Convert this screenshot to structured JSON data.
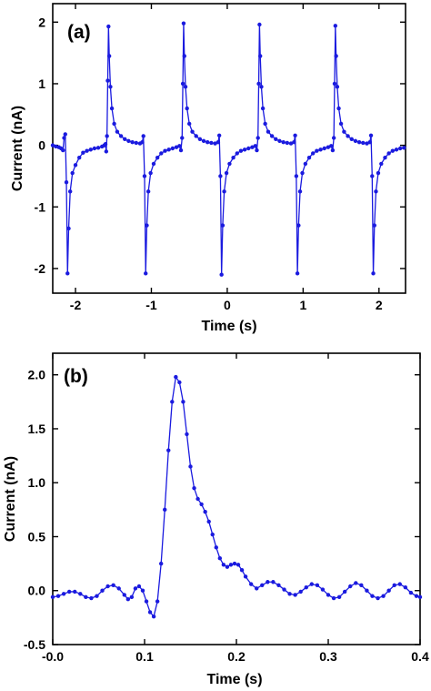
{
  "colors": {
    "series": "#1a1adf",
    "axis": "#000000"
  },
  "chart_data": [
    {
      "type": "line",
      "panel_label": "(a)",
      "xlabel": "Time (s)",
      "ylabel": "Current (nA)",
      "xlim": [
        -2.3,
        2.35
      ],
      "ylim": [
        -2.4,
        2.3
      ],
      "xticks": [
        -2,
        -1,
        0,
        1,
        2
      ],
      "xtick_labels": [
        "-2",
        "-1",
        "0",
        "1",
        "2"
      ],
      "yticks": [
        -2,
        -1,
        0,
        1,
        2
      ],
      "ytick_labels": [
        "-2",
        "-1",
        "0",
        "1",
        "2"
      ],
      "grid": false,
      "series": [
        {
          "markers": true,
          "points": [
            [
              -2.3,
              0.0
            ],
            [
              -2.26,
              -0.02
            ],
            [
              -2.22,
              -0.03
            ],
            [
              -2.19,
              -0.05
            ],
            [
              -2.165,
              -0.08
            ],
            [
              -2.15,
              0.12
            ],
            [
              -2.135,
              0.18
            ],
            [
              -2.12,
              -0.6
            ],
            [
              -2.105,
              -2.08
            ],
            [
              -2.09,
              -1.35
            ],
            [
              -2.07,
              -0.75
            ],
            [
              -2.04,
              -0.45
            ],
            [
              -2.0,
              -0.32
            ],
            [
              -1.95,
              -0.2
            ],
            [
              -1.9,
              -0.12
            ],
            [
              -1.85,
              -0.09
            ],
            [
              -1.8,
              -0.07
            ],
            [
              -1.75,
              -0.05
            ],
            [
              -1.7,
              -0.04
            ],
            [
              -1.65,
              -0.02
            ],
            [
              -1.62,
              0.0
            ],
            [
              -1.605,
              0.02
            ],
            [
              -1.595,
              -0.1
            ],
            [
              -1.585,
              0.15
            ],
            [
              -1.575,
              1.05
            ],
            [
              -1.565,
              1.93
            ],
            [
              -1.555,
              1.45
            ],
            [
              -1.54,
              0.95
            ],
            [
              -1.52,
              0.6
            ],
            [
              -1.49,
              0.35
            ],
            [
              -1.45,
              0.22
            ],
            [
              -1.4,
              0.15
            ],
            [
              -1.35,
              0.1
            ],
            [
              -1.3,
              0.07
            ],
            [
              -1.25,
              0.05
            ],
            [
              -1.2,
              0.04
            ],
            [
              -1.15,
              0.03
            ],
            [
              -1.12,
              0.05
            ],
            [
              -1.105,
              0.15
            ],
            [
              -1.09,
              -0.5
            ],
            [
              -1.075,
              -2.08
            ],
            [
              -1.06,
              -1.3
            ],
            [
              -1.04,
              -0.75
            ],
            [
              -1.01,
              -0.45
            ],
            [
              -0.97,
              -0.3
            ],
            [
              -0.92,
              -0.2
            ],
            [
              -0.87,
              -0.13
            ],
            [
              -0.82,
              -0.09
            ],
            [
              -0.77,
              -0.07
            ],
            [
              -0.72,
              -0.05
            ],
            [
              -0.67,
              -0.03
            ],
            [
              -0.63,
              -0.01
            ],
            [
              -0.61,
              -0.08
            ],
            [
              -0.595,
              0.12
            ],
            [
              -0.585,
              1.0
            ],
            [
              -0.575,
              1.98
            ],
            [
              -0.565,
              1.45
            ],
            [
              -0.55,
              0.95
            ],
            [
              -0.53,
              0.6
            ],
            [
              -0.5,
              0.35
            ],
            [
              -0.46,
              0.22
            ],
            [
              -0.41,
              0.15
            ],
            [
              -0.36,
              0.1
            ],
            [
              -0.31,
              0.07
            ],
            [
              -0.26,
              0.05
            ],
            [
              -0.21,
              0.04
            ],
            [
              -0.16,
              0.03
            ],
            [
              -0.12,
              0.05
            ],
            [
              -0.105,
              0.16
            ],
            [
              -0.09,
              -0.5
            ],
            [
              -0.075,
              -2.1
            ],
            [
              -0.06,
              -1.3
            ],
            [
              -0.04,
              -0.75
            ],
            [
              -0.01,
              -0.45
            ],
            [
              0.03,
              -0.3
            ],
            [
              0.08,
              -0.2
            ],
            [
              0.13,
              -0.13
            ],
            [
              0.18,
              -0.09
            ],
            [
              0.23,
              -0.07
            ],
            [
              0.28,
              -0.05
            ],
            [
              0.33,
              -0.03
            ],
            [
              0.37,
              -0.01
            ],
            [
              0.39,
              -0.08
            ],
            [
              0.405,
              0.12
            ],
            [
              0.415,
              1.0
            ],
            [
              0.425,
              1.96
            ],
            [
              0.435,
              1.45
            ],
            [
              0.45,
              0.95
            ],
            [
              0.47,
              0.6
            ],
            [
              0.5,
              0.35
            ],
            [
              0.54,
              0.22
            ],
            [
              0.59,
              0.15
            ],
            [
              0.64,
              0.1
            ],
            [
              0.69,
              0.07
            ],
            [
              0.74,
              0.05
            ],
            [
              0.79,
              0.04
            ],
            [
              0.84,
              0.03
            ],
            [
              0.88,
              0.05
            ],
            [
              0.895,
              0.16
            ],
            [
              0.91,
              -0.5
            ],
            [
              0.925,
              -2.08
            ],
            [
              0.94,
              -1.3
            ],
            [
              0.96,
              -0.75
            ],
            [
              0.99,
              -0.45
            ],
            [
              1.03,
              -0.3
            ],
            [
              1.08,
              -0.2
            ],
            [
              1.13,
              -0.13
            ],
            [
              1.18,
              -0.09
            ],
            [
              1.23,
              -0.07
            ],
            [
              1.28,
              -0.05
            ],
            [
              1.33,
              -0.03
            ],
            [
              1.37,
              -0.01
            ],
            [
              1.39,
              -0.08
            ],
            [
              1.405,
              0.12
            ],
            [
              1.415,
              1.0
            ],
            [
              1.425,
              1.94
            ],
            [
              1.435,
              1.45
            ],
            [
              1.45,
              0.95
            ],
            [
              1.47,
              0.6
            ],
            [
              1.5,
              0.35
            ],
            [
              1.54,
              0.22
            ],
            [
              1.59,
              0.15
            ],
            [
              1.64,
              0.1
            ],
            [
              1.69,
              0.07
            ],
            [
              1.74,
              0.05
            ],
            [
              1.79,
              0.04
            ],
            [
              1.84,
              0.03
            ],
            [
              1.88,
              0.05
            ],
            [
              1.895,
              0.16
            ],
            [
              1.91,
              -0.5
            ],
            [
              1.925,
              -2.08
            ],
            [
              1.94,
              -1.3
            ],
            [
              1.96,
              -0.75
            ],
            [
              1.99,
              -0.45
            ],
            [
              2.03,
              -0.3
            ],
            [
              2.08,
              -0.2
            ],
            [
              2.13,
              -0.13
            ],
            [
              2.18,
              -0.09
            ],
            [
              2.23,
              -0.07
            ],
            [
              2.28,
              -0.05
            ],
            [
              2.33,
              -0.04
            ]
          ]
        }
      ]
    },
    {
      "type": "line",
      "panel_label": "(b)",
      "xlabel": "Time (s)",
      "ylabel": "Current (nA)",
      "xlim": [
        0.0,
        0.4
      ],
      "ylim": [
        -0.5,
        2.2
      ],
      "xticks": [
        0.0,
        0.1,
        0.2,
        0.3,
        0.4
      ],
      "xtick_labels": [
        "-0.0",
        "0.1",
        "0.2",
        "0.3",
        "0.4"
      ],
      "yticks": [
        -0.5,
        0.0,
        0.5,
        1.0,
        1.5,
        2.0
      ],
      "ytick_labels": [
        "-0.5",
        "0.0",
        "0.5",
        "1.0",
        "1.5",
        "2.0"
      ],
      "grid": false,
      "series": [
        {
          "markers": true,
          "points": [
            [
              0.0,
              -0.06
            ],
            [
              0.006,
              -0.05
            ],
            [
              0.012,
              -0.03
            ],
            [
              0.018,
              -0.01
            ],
            [
              0.024,
              -0.01
            ],
            [
              0.03,
              -0.03
            ],
            [
              0.036,
              -0.06
            ],
            [
              0.042,
              -0.07
            ],
            [
              0.048,
              -0.05
            ],
            [
              0.054,
              0.0
            ],
            [
              0.06,
              0.04
            ],
            [
              0.066,
              0.05
            ],
            [
              0.072,
              0.02
            ],
            [
              0.078,
              -0.04
            ],
            [
              0.082,
              -0.08
            ],
            [
              0.086,
              -0.06
            ],
            [
              0.09,
              0.02
            ],
            [
              0.094,
              0.04
            ],
            [
              0.098,
              0.0
            ],
            [
              0.102,
              -0.1
            ],
            [
              0.106,
              -0.2
            ],
            [
              0.11,
              -0.24
            ],
            [
              0.114,
              -0.1
            ],
            [
              0.118,
              0.25
            ],
            [
              0.122,
              0.75
            ],
            [
              0.126,
              1.3
            ],
            [
              0.13,
              1.75
            ],
            [
              0.134,
              1.98
            ],
            [
              0.138,
              1.93
            ],
            [
              0.142,
              1.75
            ],
            [
              0.146,
              1.45
            ],
            [
              0.15,
              1.15
            ],
            [
              0.154,
              0.95
            ],
            [
              0.158,
              0.85
            ],
            [
              0.162,
              0.8
            ],
            [
              0.166,
              0.73
            ],
            [
              0.17,
              0.64
            ],
            [
              0.174,
              0.52
            ],
            [
              0.178,
              0.4
            ],
            [
              0.182,
              0.3
            ],
            [
              0.186,
              0.24
            ],
            [
              0.19,
              0.22
            ],
            [
              0.194,
              0.24
            ],
            [
              0.198,
              0.25
            ],
            [
              0.202,
              0.24
            ],
            [
              0.206,
              0.19
            ],
            [
              0.21,
              0.13
            ],
            [
              0.216,
              0.06
            ],
            [
              0.222,
              0.02
            ],
            [
              0.228,
              0.05
            ],
            [
              0.234,
              0.08
            ],
            [
              0.24,
              0.08
            ],
            [
              0.246,
              0.05
            ],
            [
              0.252,
              0.01
            ],
            [
              0.258,
              -0.03
            ],
            [
              0.264,
              -0.04
            ],
            [
              0.27,
              -0.01
            ],
            [
              0.276,
              0.03
            ],
            [
              0.282,
              0.06
            ],
            [
              0.288,
              0.05
            ],
            [
              0.294,
              0.01
            ],
            [
              0.3,
              -0.04
            ],
            [
              0.306,
              -0.07
            ],
            [
              0.312,
              -0.06
            ],
            [
              0.318,
              -0.01
            ],
            [
              0.324,
              0.04
            ],
            [
              0.33,
              0.07
            ],
            [
              0.336,
              0.05
            ],
            [
              0.342,
              0.0
            ],
            [
              0.348,
              -0.05
            ],
            [
              0.354,
              -0.07
            ],
            [
              0.36,
              -0.05
            ],
            [
              0.366,
              0.0
            ],
            [
              0.372,
              0.05
            ],
            [
              0.378,
              0.06
            ],
            [
              0.384,
              0.03
            ],
            [
              0.39,
              -0.02
            ],
            [
              0.396,
              -0.05
            ],
            [
              0.4,
              -0.06
            ]
          ]
        }
      ]
    }
  ]
}
